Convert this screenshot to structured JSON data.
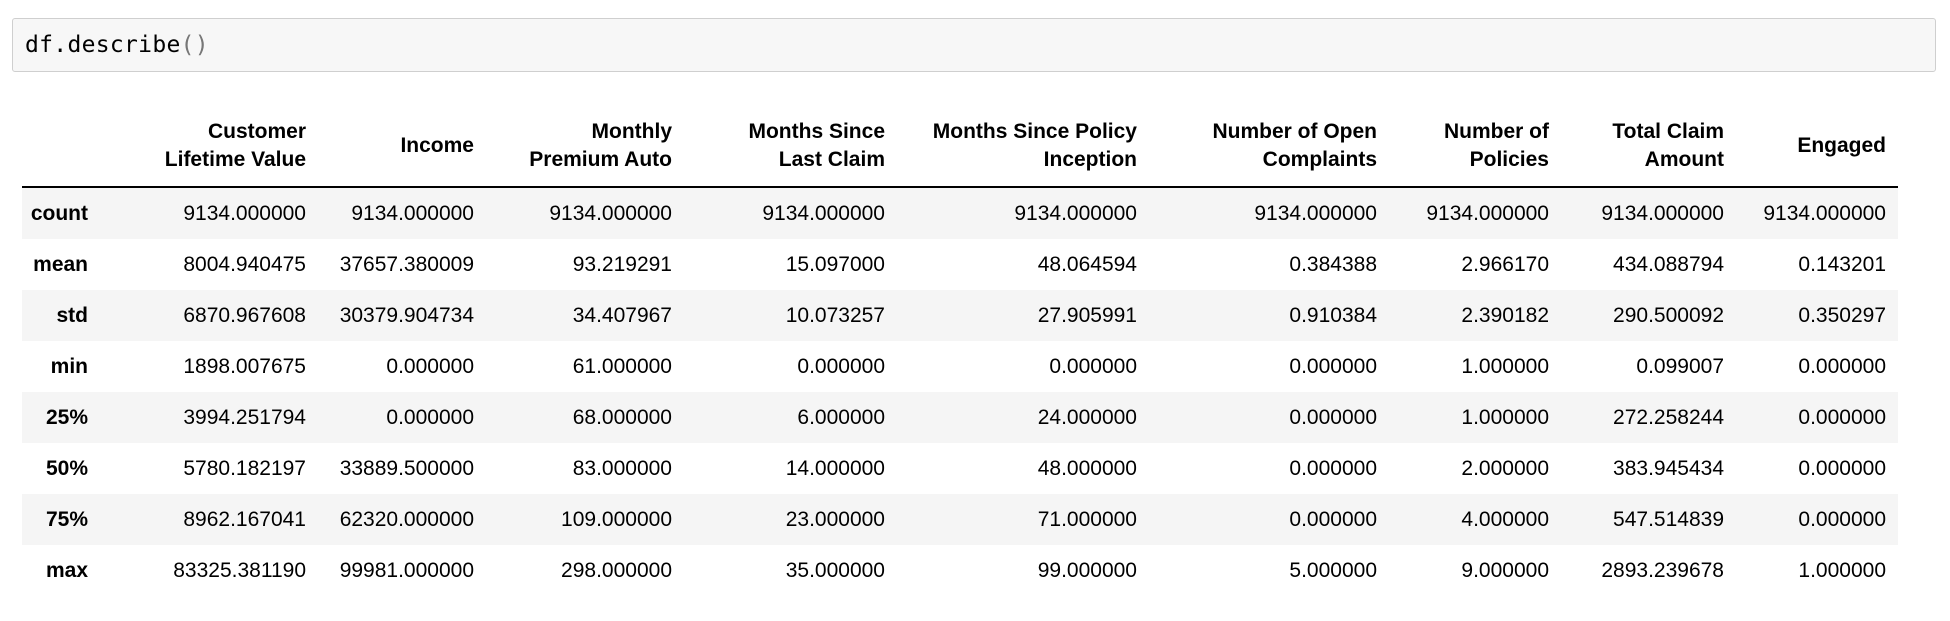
{
  "code_cell": {
    "code_text": "df.describe",
    "code_parens": "()"
  },
  "table": {
    "columns": [
      [
        "Customer",
        "Lifetime Value"
      ],
      [
        "Income"
      ],
      [
        "Monthly",
        "Premium Auto"
      ],
      [
        "Months Since",
        "Last Claim"
      ],
      [
        "Months Since Policy",
        "Inception"
      ],
      [
        "Number of Open",
        "Complaints"
      ],
      [
        "Number of",
        "Policies"
      ],
      [
        "Total Claim",
        "Amount"
      ],
      [
        "Engaged"
      ]
    ],
    "rows": [
      {
        "label": "count",
        "values": [
          "9134.000000",
          "9134.000000",
          "9134.000000",
          "9134.000000",
          "9134.000000",
          "9134.000000",
          "9134.000000",
          "9134.000000",
          "9134.000000"
        ]
      },
      {
        "label": "mean",
        "values": [
          "8004.940475",
          "37657.380009",
          "93.219291",
          "15.097000",
          "48.064594",
          "0.384388",
          "2.966170",
          "434.088794",
          "0.143201"
        ]
      },
      {
        "label": "std",
        "values": [
          "6870.967608",
          "30379.904734",
          "34.407967",
          "10.073257",
          "27.905991",
          "0.910384",
          "2.390182",
          "290.500092",
          "0.350297"
        ]
      },
      {
        "label": "min",
        "values": [
          "1898.007675",
          "0.000000",
          "61.000000",
          "0.000000",
          "0.000000",
          "0.000000",
          "1.000000",
          "0.099007",
          "0.000000"
        ]
      },
      {
        "label": "25%",
        "values": [
          "3994.251794",
          "0.000000",
          "68.000000",
          "6.000000",
          "24.000000",
          "0.000000",
          "1.000000",
          "272.258244",
          "0.000000"
        ]
      },
      {
        "label": "50%",
        "values": [
          "5780.182197",
          "33889.500000",
          "83.000000",
          "14.000000",
          "48.000000",
          "0.000000",
          "2.000000",
          "383.945434",
          "0.000000"
        ]
      },
      {
        "label": "75%",
        "values": [
          "8962.167041",
          "62320.000000",
          "109.000000",
          "23.000000",
          "71.000000",
          "0.000000",
          "4.000000",
          "547.514839",
          "0.000000"
        ]
      },
      {
        "label": "max",
        "values": [
          "83325.381190",
          "99981.000000",
          "298.000000",
          "35.000000",
          "99.000000",
          "5.000000",
          "9.000000",
          "2893.239678",
          "1.000000"
        ]
      }
    ]
  }
}
